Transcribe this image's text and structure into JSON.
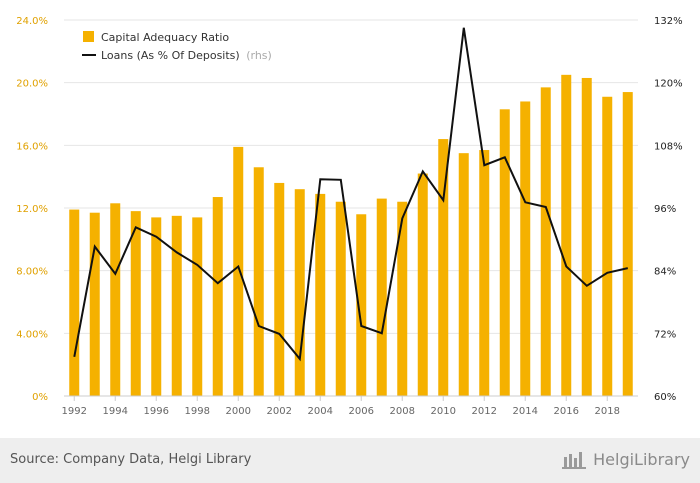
{
  "chart_data": {
    "type": "bar+line",
    "x": [
      "1992",
      "1993",
      "1994",
      "1995",
      "1996",
      "1997",
      "1998",
      "1999",
      "2000",
      "2001",
      "2002",
      "2003",
      "2004",
      "2005",
      "2006",
      "2007",
      "2008",
      "2009",
      "2010",
      "2011",
      "2012",
      "2013",
      "2014",
      "2015",
      "2016",
      "2017",
      "2018",
      "2019"
    ],
    "x_tick_labels": [
      "1992",
      "1994",
      "1996",
      "1998",
      "2000",
      "2002",
      "2004",
      "2006",
      "2008",
      "2010",
      "2012",
      "2014",
      "2016",
      "2018"
    ],
    "series": [
      {
        "name": "Capital Adequacy Ratio",
        "type": "bar",
        "axis": "left",
        "color": "#f5b100",
        "values": [
          11.9,
          11.7,
          12.3,
          11.8,
          11.4,
          11.5,
          11.4,
          12.7,
          15.9,
          14.6,
          13.6,
          13.2,
          12.9,
          12.4,
          11.6,
          12.6,
          12.4,
          14.2,
          16.4,
          15.5,
          15.7,
          18.3,
          18.8,
          19.7,
          20.5,
          20.3,
          19.1,
          19.4
        ]
      },
      {
        "name": "Loans (As % Of Deposits)",
        "name_suffix": "(rhs)",
        "type": "line",
        "axis": "right",
        "color": "#111111",
        "values": [
          67.5,
          88.6,
          83.4,
          92.3,
          90.5,
          87.5,
          85.1,
          81.6,
          84.8,
          73.4,
          71.9,
          67.1,
          101.5,
          101.4,
          73.4,
          72.0,
          94.0,
          103.0,
          97.5,
          130.5,
          104.2,
          105.7,
          97.1,
          96.2,
          84.8,
          81.1,
          83.6,
          84.5
        ]
      }
    ],
    "y_left": {
      "lim": [
        0,
        24
      ],
      "ticks": [
        "0%",
        "4.00%",
        "8.00%",
        "12.0%",
        "16.0%",
        "20.0%",
        "24.0%"
      ],
      "tick_values": [
        0,
        4,
        8,
        12,
        16,
        20,
        24
      ]
    },
    "y_right": {
      "lim": [
        60,
        132
      ],
      "ticks": [
        "60%",
        "72%",
        "84%",
        "96%",
        "108%",
        "120%",
        "132%"
      ],
      "tick_values": [
        60,
        72,
        84,
        96,
        108,
        120,
        132
      ]
    },
    "grid": true,
    "legend_position": "top-left"
  },
  "footer": {
    "source": "Source: Company Data, Helgi Library",
    "brand": "HelgiLibrary"
  }
}
